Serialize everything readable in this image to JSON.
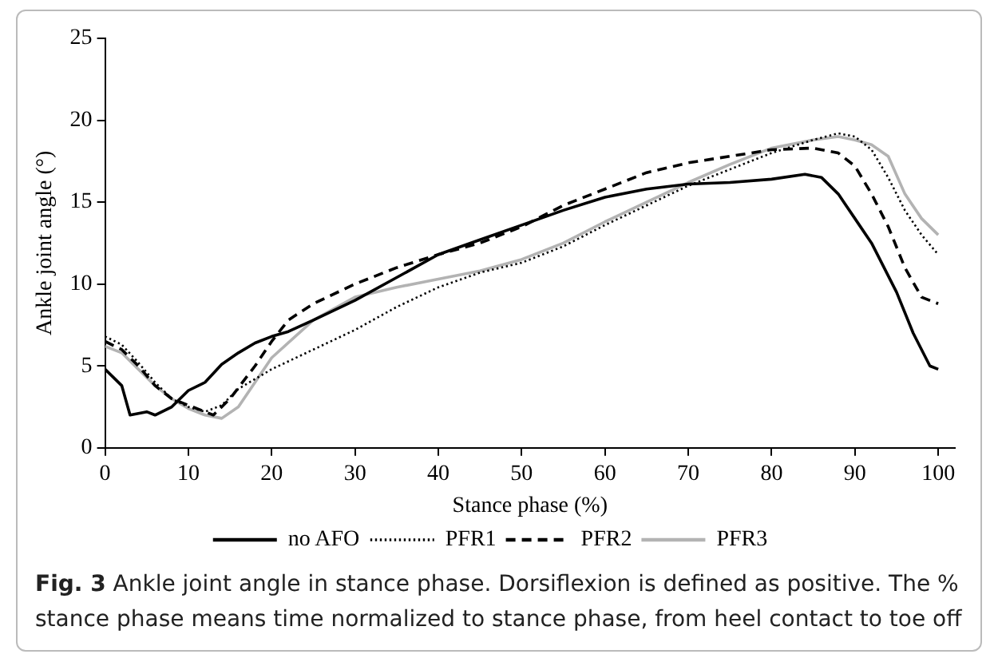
{
  "chart_data": {
    "type": "line",
    "xlabel": "Stance phase (%)",
    "ylabel": "Ankle joint angle (°)",
    "xlim": [
      0,
      102
    ],
    "xticks": [
      0,
      10,
      20,
      30,
      40,
      50,
      60,
      70,
      80,
      90,
      100
    ],
    "ylim": [
      0,
      25
    ],
    "yticks": [
      0,
      5,
      10,
      15,
      20,
      25
    ],
    "grid": false,
    "legend": "bottom",
    "marker": "none",
    "annotations": [
      "Fig. 3  Ankle joint angle in stance phase. Dorsiflexion is defined as positive. The % stance phase means time normalized to stance phase, from heel contact to toe off"
    ],
    "series": [
      {
        "name": "no AFO",
        "color": "#000000",
        "line_style": "solid",
        "x": [
          0,
          2,
          3,
          5,
          6,
          8,
          10,
          12,
          14,
          16,
          18,
          20,
          22,
          25,
          30,
          35,
          40,
          45,
          50,
          55,
          60,
          65,
          70,
          75,
          80,
          84,
          86,
          88,
          90,
          92,
          95,
          97,
          99,
          100
        ],
        "values": [
          4.8,
          3.8,
          2.0,
          2.2,
          2.0,
          2.5,
          3.5,
          4.0,
          5.1,
          5.8,
          6.4,
          6.8,
          7.1,
          7.8,
          9.0,
          10.4,
          11.8,
          12.7,
          13.6,
          14.5,
          15.3,
          15.8,
          16.1,
          16.2,
          16.4,
          16.7,
          16.5,
          15.5,
          14.0,
          12.5,
          9.5,
          7.0,
          5.0,
          4.8
        ]
      },
      {
        "name": "PFR1",
        "color": "#000000",
        "line_style": "dotted",
        "x": [
          0,
          2,
          4,
          6,
          8,
          10,
          12,
          14,
          16,
          18,
          20,
          25,
          30,
          35,
          40,
          45,
          50,
          55,
          60,
          65,
          70,
          75,
          80,
          85,
          88,
          90,
          92,
          94,
          96,
          98,
          100
        ],
        "values": [
          6.8,
          6.3,
          5.2,
          4.0,
          3.0,
          2.5,
          2.2,
          2.6,
          3.6,
          4.2,
          4.8,
          6.0,
          7.2,
          8.6,
          9.8,
          10.7,
          11.3,
          12.3,
          13.6,
          14.8,
          16.0,
          17.0,
          18.0,
          18.8,
          19.2,
          19.0,
          18.2,
          16.5,
          14.5,
          13.0,
          11.8
        ]
      },
      {
        "name": "PFR2",
        "color": "#000000",
        "line_style": "dashed",
        "x": [
          0,
          2,
          4,
          6,
          8,
          10,
          12,
          13,
          15,
          18,
          20,
          22,
          25,
          30,
          35,
          40,
          45,
          50,
          55,
          60,
          65,
          70,
          75,
          80,
          85,
          88,
          90,
          92,
          94,
          96,
          98,
          100
        ],
        "values": [
          6.5,
          6.0,
          5.0,
          3.8,
          3.0,
          2.6,
          2.2,
          2.0,
          3.0,
          5.0,
          6.5,
          7.8,
          8.8,
          10.0,
          11.0,
          11.8,
          12.5,
          13.5,
          14.8,
          15.8,
          16.8,
          17.4,
          17.8,
          18.2,
          18.3,
          18.0,
          17.2,
          15.5,
          13.5,
          11.0,
          9.2,
          8.8
        ]
      },
      {
        "name": "PFR3",
        "color": "#b3b3b3",
        "line_style": "solid",
        "x": [
          0,
          2,
          4,
          6,
          8,
          10,
          12,
          14,
          16,
          18,
          20,
          25,
          30,
          35,
          40,
          45,
          50,
          55,
          60,
          65,
          70,
          75,
          80,
          85,
          88,
          90,
          92,
          94,
          96,
          98,
          100
        ],
        "values": [
          6.2,
          5.8,
          4.8,
          3.8,
          3.0,
          2.4,
          2.0,
          1.8,
          2.5,
          4.0,
          5.5,
          7.8,
          9.2,
          9.8,
          10.3,
          10.8,
          11.5,
          12.5,
          13.8,
          15.0,
          16.2,
          17.3,
          18.3,
          18.8,
          19.0,
          18.8,
          18.5,
          17.8,
          15.5,
          14.0,
          13.0
        ]
      }
    ]
  }
}
